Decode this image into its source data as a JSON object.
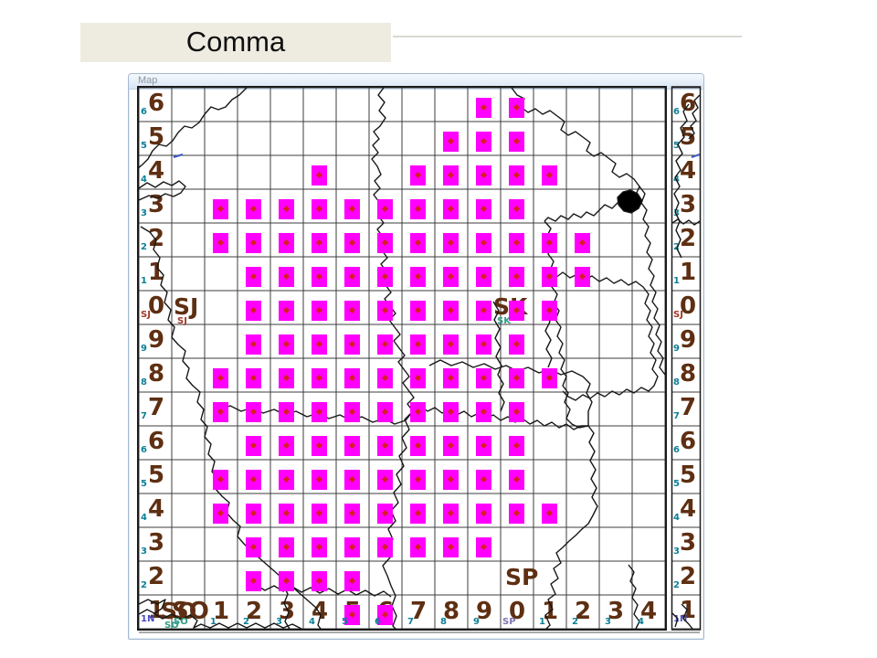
{
  "slide": {
    "title": "Comma"
  },
  "window": {
    "title": "Map"
  },
  "map": {
    "left_axis": [
      "6",
      "5",
      "4",
      "3",
      "2",
      "1",
      "0",
      "9",
      "8",
      "7",
      "6",
      "5",
      "4",
      "3",
      "2",
      "1"
    ],
    "left_axis_sub": [
      "6",
      "5",
      "4",
      "3",
      "2",
      "1",
      "SJ",
      "9",
      "8",
      "7",
      "6",
      "5",
      "4",
      "3",
      "2",
      "1N"
    ],
    "right_axis": [
      "6",
      "5",
      "4",
      "3",
      "2",
      "1",
      "0",
      "9",
      "8",
      "7",
      "6",
      "5",
      "4",
      "3",
      "2",
      "1"
    ],
    "right_axis_sub": [
      "6",
      "5",
      "4",
      "3",
      "2",
      "1",
      "SJ",
      "9",
      "8",
      "7",
      "6",
      "5",
      "4",
      "3",
      "2",
      "1N"
    ],
    "bottom_axis": [
      "SO",
      "1",
      "2",
      "3",
      "4",
      "5",
      "6",
      "7",
      "8",
      "9",
      "0",
      "1",
      "2",
      "3",
      "4"
    ],
    "bottom_axis_sub": [
      "SO",
      "1",
      "2",
      "3",
      "4",
      "5",
      "6",
      "7",
      "8",
      "9",
      "SP",
      "1",
      "2",
      "3",
      "4"
    ],
    "grid_square_labels": [
      {
        "label": "SJ",
        "sub": "SJ",
        "col": 0,
        "row": 6
      },
      {
        "label": "SK",
        "sub": "SK",
        "col": 10,
        "row": 6
      },
      {
        "label": "SO",
        "sub": "SO",
        "col": 0,
        "row": 15
      },
      {
        "label": "SP",
        "sub": "",
        "col": 10,
        "row": 14
      }
    ],
    "records": [
      {
        "row": 0,
        "cols": [
          9,
          10
        ]
      },
      {
        "row": 1,
        "cols": [
          8,
          9,
          10
        ]
      },
      {
        "row": 2,
        "cols": [
          4,
          7,
          8,
          9,
          10,
          11
        ]
      },
      {
        "row": 3,
        "cols": [
          1,
          2,
          3,
          4,
          5,
          6,
          7,
          8,
          9,
          10
        ]
      },
      {
        "row": 4,
        "cols": [
          1,
          2,
          3,
          4,
          5,
          6,
          7,
          8,
          9,
          10,
          11,
          12
        ]
      },
      {
        "row": 5,
        "cols": [
          2,
          3,
          4,
          5,
          6,
          7,
          8,
          9,
          10,
          11,
          12
        ]
      },
      {
        "row": 6,
        "cols": [
          2,
          3,
          4,
          5,
          6,
          7,
          8,
          9,
          10,
          11
        ]
      },
      {
        "row": 7,
        "cols": [
          2,
          3,
          4,
          5,
          6,
          7,
          8,
          9,
          10
        ]
      },
      {
        "row": 8,
        "cols": [
          1,
          2,
          3,
          4,
          5,
          6,
          7,
          8,
          9,
          10,
          11
        ]
      },
      {
        "row": 9,
        "cols": [
          1,
          2,
          3,
          4,
          5,
          6,
          7,
          8,
          9,
          10
        ]
      },
      {
        "row": 10,
        "cols": [
          2,
          3,
          4,
          5,
          6,
          7,
          8,
          9,
          10
        ]
      },
      {
        "row": 11,
        "cols": [
          1,
          2,
          3,
          4,
          5,
          6,
          7,
          8,
          9,
          10
        ]
      },
      {
        "row": 12,
        "cols": [
          1,
          2,
          3,
          4,
          5,
          6,
          7,
          8,
          9,
          10,
          11
        ]
      },
      {
        "row": 13,
        "cols": [
          2,
          3,
          4,
          5,
          6,
          7,
          8,
          9
        ]
      },
      {
        "row": 14,
        "cols": [
          2,
          3,
          4,
          5
        ]
      },
      {
        "row": 15,
        "cols": [
          5,
          6
        ]
      }
    ],
    "colors": {
      "record": "#ff00ff",
      "record_dot": "#d42020",
      "axis_text": "#5e2f12",
      "sub_text": "#0a7f96",
      "sub_special": {
        "SJ": "#a03a2a",
        "SP": "#7f76b4",
        "SO": "#2f9e86",
        "SK": "#2f9e86",
        "1N": "#4a4ac0"
      },
      "grid_line": "#3c3c3c",
      "boundary": "#161616",
      "water": "#3a56c4"
    }
  }
}
